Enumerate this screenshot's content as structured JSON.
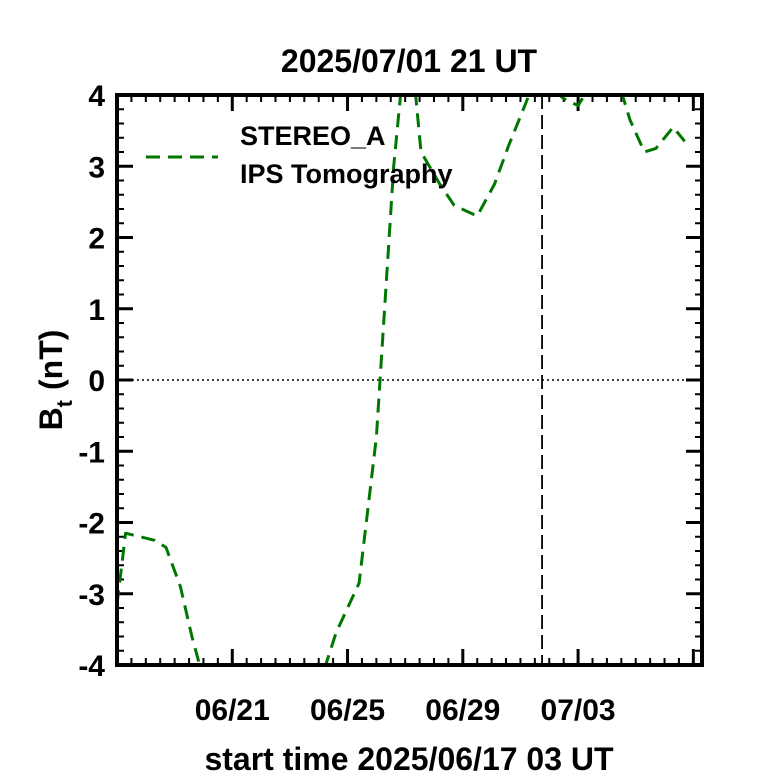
{
  "chart_data": {
    "type": "line",
    "title": "2025/07/01 21 UT",
    "xlabel": "start time 2025/06/17 03 UT",
    "ylabel": "B",
    "ylabel_sub": "t",
    "ylabel_unit": "(nT)",
    "xlim": [
      0,
      20.3
    ],
    "ylim": [
      -4,
      4
    ],
    "x_ticks": [
      {
        "x": 4,
        "label": "06/21"
      },
      {
        "x": 8,
        "label": "06/25"
      },
      {
        "x": 12,
        "label": "06/29"
      },
      {
        "x": 16,
        "label": "07/03"
      }
    ],
    "y_ticks": [
      -4,
      -3,
      -2,
      -1,
      0,
      1,
      2,
      3,
      4
    ],
    "zero_line": true,
    "current_time_x": 14.75,
    "legend": {
      "placement": "top-left",
      "lines": [
        "STEREO_A",
        "IPS Tomography"
      ]
    },
    "series": [
      {
        "name": "STEREO_A IPS Tomography",
        "color": "#007700",
        "style": "dashed",
        "points": [
          [
            0.0,
            -3.15
          ],
          [
            0.3,
            -2.15
          ],
          [
            1.3,
            -2.25
          ],
          [
            1.7,
            -2.35
          ],
          [
            2.2,
            -2.9
          ],
          [
            2.6,
            -3.6
          ],
          [
            2.9,
            -4.05
          ],
          null,
          [
            7.2,
            -4.05
          ],
          [
            7.6,
            -3.55
          ],
          [
            8.4,
            -2.85
          ],
          [
            9.0,
            -0.8
          ],
          [
            9.6,
            3.0
          ],
          [
            9.85,
            4.05
          ],
          null,
          [
            10.35,
            4.05
          ],
          [
            10.55,
            3.2
          ],
          [
            11.2,
            2.75
          ],
          [
            11.7,
            2.45
          ],
          [
            12.5,
            2.3
          ],
          [
            13.1,
            2.75
          ],
          [
            13.6,
            3.3
          ],
          [
            14.1,
            3.8
          ],
          [
            14.35,
            4.05
          ],
          null,
          [
            15.2,
            4.05
          ],
          [
            15.5,
            3.95
          ],
          [
            16.0,
            3.85
          ],
          [
            16.3,
            4.05
          ],
          null,
          [
            17.5,
            4.05
          ],
          [
            17.8,
            3.65
          ],
          [
            18.3,
            3.2
          ],
          [
            18.7,
            3.25
          ],
          [
            19.3,
            3.55
          ],
          [
            19.7,
            3.35
          ]
        ]
      }
    ]
  }
}
